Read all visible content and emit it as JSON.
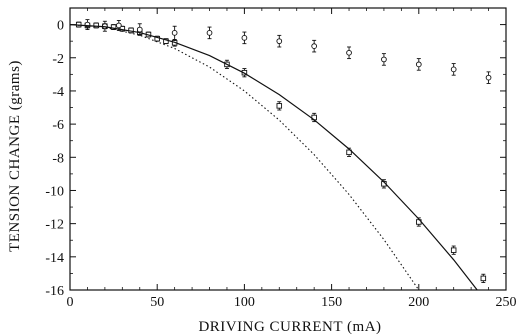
{
  "chart_data": {
    "type": "scatter",
    "title": "",
    "xlabel": "DRIVING CURRENT (mA)",
    "ylabel": "TENSION CHANGE (grams)",
    "xlim": [
      0,
      250
    ],
    "ylim": [
      -16,
      1
    ],
    "xticks": [
      0,
      50,
      100,
      150,
      200,
      250
    ],
    "yticks": [
      0,
      -2,
      -4,
      -6,
      -8,
      -10,
      -12,
      -14,
      -16
    ],
    "grid": false,
    "legend": "none",
    "series": [
      {
        "marker": "square",
        "points": [
          {
            "x": 5,
            "y": 0.0,
            "err": 0.15
          },
          {
            "x": 10,
            "y": -0.05,
            "err": 0.15
          },
          {
            "x": 15,
            "y": -0.05,
            "err": 0.15
          },
          {
            "x": 20,
            "y": -0.1,
            "err": 0.15
          },
          {
            "x": 25,
            "y": -0.15,
            "err": 0.15
          },
          {
            "x": 30,
            "y": -0.25,
            "err": 0.15
          },
          {
            "x": 35,
            "y": -0.35,
            "err": 0.15
          },
          {
            "x": 40,
            "y": -0.45,
            "err": 0.15
          },
          {
            "x": 45,
            "y": -0.6,
            "err": 0.15
          },
          {
            "x": 50,
            "y": -0.85,
            "err": 0.15
          },
          {
            "x": 55,
            "y": -1.0,
            "err": 0.15
          },
          {
            "x": 60,
            "y": -1.1,
            "err": 0.2
          },
          {
            "x": 90,
            "y": -2.4,
            "err": 0.25
          },
          {
            "x": 100,
            "y": -2.9,
            "err": 0.25
          },
          {
            "x": 120,
            "y": -4.9,
            "err": 0.25
          },
          {
            "x": 140,
            "y": -5.6,
            "err": 0.25
          },
          {
            "x": 160,
            "y": -7.7,
            "err": 0.25
          },
          {
            "x": 180,
            "y": -9.6,
            "err": 0.25
          },
          {
            "x": 200,
            "y": -11.9,
            "err": 0.25
          },
          {
            "x": 220,
            "y": -13.6,
            "err": 0.25
          },
          {
            "x": 237,
            "y": -15.3,
            "err": 0.25
          }
        ]
      },
      {
        "marker": "circle",
        "points": [
          {
            "x": 10,
            "y": 0.0,
            "err": 0.3
          },
          {
            "x": 20,
            "y": -0.1,
            "err": 0.3
          },
          {
            "x": 28,
            "y": -0.05,
            "err": 0.3
          },
          {
            "x": 40,
            "y": -0.3,
            "err": 0.35
          },
          {
            "x": 60,
            "y": -0.5,
            "err": 0.4
          },
          {
            "x": 80,
            "y": -0.5,
            "err": 0.35
          },
          {
            "x": 100,
            "y": -0.8,
            "err": 0.35
          },
          {
            "x": 120,
            "y": -1.0,
            "err": 0.35
          },
          {
            "x": 140,
            "y": -1.3,
            "err": 0.35
          },
          {
            "x": 160,
            "y": -1.7,
            "err": 0.35
          },
          {
            "x": 180,
            "y": -2.1,
            "err": 0.35
          },
          {
            "x": 200,
            "y": -2.4,
            "err": 0.35
          },
          {
            "x": 220,
            "y": -2.7,
            "err": 0.35
          },
          {
            "x": 240,
            "y": -3.2,
            "err": 0.35
          }
        ]
      },
      {
        "type": "line",
        "style": "solid",
        "x": [
          0,
          20,
          40,
          60,
          80,
          100,
          120,
          140,
          160,
          180,
          200,
          220,
          240
        ],
        "y": [
          0.0,
          -0.13,
          -0.48,
          -1.07,
          -1.87,
          -2.93,
          -4.22,
          -5.74,
          -7.5,
          -9.49,
          -11.72,
          -14.18,
          -16.88
        ]
      },
      {
        "type": "line",
        "style": "dotted",
        "x": [
          0,
          20,
          40,
          60,
          80,
          100,
          120,
          140,
          160,
          180,
          200,
          220
        ],
        "y": [
          0.0,
          -0.16,
          -0.64,
          -1.44,
          -2.56,
          -4.0,
          -5.76,
          -7.84,
          -10.24,
          -12.96,
          -16.0,
          -19.36
        ]
      }
    ]
  }
}
